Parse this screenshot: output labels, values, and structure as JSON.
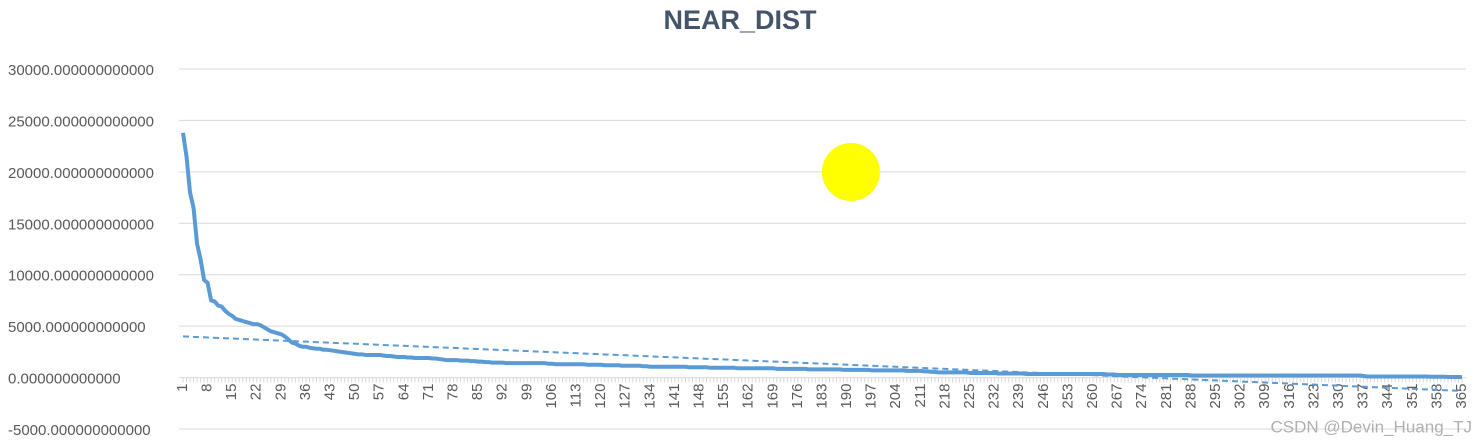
{
  "chart_data": {
    "type": "line",
    "title": "NEAR_DIST",
    "categories": [
      1,
      null,
      null,
      null,
      null,
      null,
      null,
      8,
      null,
      null,
      null,
      null,
      null,
      null,
      15,
      null,
      null,
      null,
      null,
      null,
      null,
      22,
      null,
      null,
      null,
      null,
      null,
      null,
      29,
      null,
      null,
      null,
      null,
      null,
      null,
      36,
      null,
      null,
      null,
      null,
      null,
      null,
      43,
      null,
      null,
      null,
      null,
      null,
      null,
      50,
      null,
      null,
      null,
      null,
      null,
      null,
      57,
      null,
      null,
      null,
      null,
      null,
      null,
      64,
      null,
      null,
      null,
      null,
      null,
      null,
      71,
      null,
      null,
      null,
      null,
      null,
      null,
      78,
      null,
      null,
      null,
      null,
      null,
      null,
      85,
      null,
      null,
      null,
      null,
      null,
      null,
      92,
      null,
      null,
      null,
      null,
      null,
      null,
      99,
      null,
      null,
      null,
      null,
      null,
      null,
      106,
      null,
      null,
      null,
      null,
      null,
      null,
      113,
      null,
      null,
      null,
      null,
      null,
      null,
      120,
      null,
      null,
      null,
      null,
      null,
      null,
      127,
      null,
      null,
      null,
      null,
      null,
      null,
      134,
      null,
      null,
      null,
      null,
      null,
      null,
      141,
      null,
      null,
      null,
      null,
      null,
      null,
      148,
      null,
      null,
      null,
      null,
      null,
      null,
      155,
      null,
      null,
      null,
      null,
      null,
      null,
      162,
      null,
      null,
      null,
      null,
      null,
      null,
      169,
      null,
      null,
      null,
      null,
      null,
      null,
      176,
      null,
      null,
      null,
      null,
      null,
      null,
      183,
      null,
      null,
      null,
      null,
      null,
      null,
      190,
      null,
      null,
      null,
      null,
      null,
      null,
      197,
      null,
      null,
      null,
      null,
      null,
      null,
      204,
      null,
      null,
      null,
      null,
      null,
      null,
      211,
      null,
      null,
      null,
      null,
      null,
      null,
      218,
      null,
      null,
      null,
      null,
      null,
      null,
      225,
      null,
      null,
      null,
      null,
      null,
      null,
      232,
      null,
      null,
      null,
      null,
      null,
      null,
      239,
      null,
      null,
      null,
      null,
      null,
      null,
      246,
      null,
      null,
      null,
      null,
      null,
      null,
      253,
      null,
      null,
      null,
      null,
      null,
      null,
      260,
      null,
      null,
      null,
      null,
      null,
      null,
      267,
      null,
      null,
      null,
      null,
      null,
      null,
      274,
      null,
      null,
      null,
      null,
      null,
      null,
      281,
      null,
      null,
      null,
      null,
      null,
      null,
      288,
      null,
      null,
      null,
      null,
      null,
      null,
      295,
      null,
      null,
      null,
      null,
      null,
      null,
      302,
      null,
      null,
      null,
      null,
      null,
      null,
      309,
      null,
      null,
      null,
      null,
      null,
      null,
      316,
      null,
      null,
      null,
      null,
      null,
      null,
      323,
      null,
      null,
      null,
      null,
      null,
      null,
      330,
      null,
      null,
      null,
      null,
      null,
      null,
      337,
      null,
      null,
      null,
      null,
      null,
      null,
      344,
      null,
      null,
      null,
      null,
      null,
      null,
      351,
      null,
      null,
      null,
      null,
      null,
      null,
      358,
      null,
      null,
      null,
      null,
      null,
      null,
      365
    ],
    "series": [
      {
        "color": "#5b9bd5",
        "values": [
          23800,
          21500,
          18000,
          16500,
          13000,
          11500,
          9500,
          9200,
          7500,
          7400,
          7000,
          6900,
          6500,
          6200,
          6000,
          5700,
          5600,
          5500,
          5400,
          5300,
          5200,
          5200,
          5100,
          4900,
          4700,
          4500,
          4400,
          4300,
          4200,
          4000,
          3700,
          3400,
          3300,
          3100,
          3000,
          3000,
          2900,
          2850,
          2800,
          2800,
          2700,
          2700,
          2650,
          2600,
          2550,
          2500,
          2450,
          2400,
          2350,
          2300,
          2250,
          2250,
          2200,
          2200,
          2200,
          2200,
          2200,
          2150,
          2100,
          2100,
          2050,
          2000,
          2000,
          2000,
          1950,
          1950,
          1900,
          1900,
          1900,
          1900,
          1900,
          1850,
          1850,
          1800,
          1750,
          1700,
          1700,
          1700,
          1700,
          1650,
          1650,
          1650,
          1600,
          1600,
          1550,
          1550,
          1500,
          1500,
          1450,
          1450,
          1450,
          1450,
          1400,
          1400,
          1400,
          1400,
          1400,
          1400,
          1400,
          1400,
          1400,
          1400,
          1400,
          1400,
          1350,
          1350,
          1300,
          1300,
          1300,
          1300,
          1300,
          1300,
          1300,
          1300,
          1300,
          1250,
          1250,
          1250,
          1250,
          1250,
          1200,
          1200,
          1200,
          1200,
          1200,
          1150,
          1150,
          1150,
          1150,
          1150,
          1150,
          1100,
          1100,
          1050,
          1050,
          1050,
          1050,
          1050,
          1050,
          1050,
          1050,
          1050,
          1050,
          1050,
          1000,
          1000,
          1000,
          1000,
          1000,
          1000,
          950,
          950,
          950,
          950,
          950,
          950,
          950,
          950,
          900,
          900,
          900,
          900,
          900,
          900,
          900,
          900,
          900,
          900,
          900,
          850,
          850,
          850,
          850,
          850,
          850,
          850,
          850,
          850,
          800,
          800,
          800,
          800,
          800,
          800,
          800,
          800,
          800,
          800,
          750,
          750,
          750,
          750,
          750,
          750,
          750,
          750,
          700,
          700,
          700,
          700,
          700,
          700,
          700,
          700,
          700,
          700,
          650,
          650,
          650,
          650,
          650,
          600,
          600,
          550,
          550,
          500,
          500,
          500,
          500,
          500,
          500,
          500,
          500,
          500,
          450,
          450,
          450,
          450,
          450,
          450,
          450,
          450,
          400,
          400,
          400,
          400,
          400,
          400,
          400,
          400,
          350,
          350,
          350,
          350,
          350,
          350,
          350,
          350,
          350,
          350,
          350,
          350,
          350,
          350,
          350,
          350,
          350,
          350,
          350,
          350,
          350,
          350,
          350,
          300,
          300,
          300,
          250,
          250,
          250,
          250,
          250,
          250,
          250,
          250,
          250,
          250,
          250,
          250,
          250,
          250,
          250,
          250,
          250,
          250,
          250,
          250,
          250,
          200,
          200,
          200,
          200,
          200,
          200,
          200,
          200,
          200,
          200,
          200,
          200,
          200,
          200,
          200,
          200,
          200,
          200,
          200,
          200,
          200,
          200,
          200,
          200,
          200,
          200,
          200,
          200,
          200,
          200,
          200,
          200,
          200,
          200,
          200,
          200,
          200,
          200,
          200,
          200,
          200,
          200,
          200,
          200,
          200,
          200,
          200,
          200,
          200,
          150,
          100,
          100,
          100,
          100,
          100,
          100,
          100,
          100,
          100,
          100,
          100,
          100,
          100,
          100,
          100,
          100,
          100,
          100,
          80,
          80,
          80,
          80,
          80,
          60,
          60,
          50,
          50,
          40
        ]
      }
    ],
    "trendline": {
      "start": 4000,
      "end": -1300,
      "color": "#5b9bd5"
    },
    "ylim": [
      -5000,
      30000
    ],
    "yticks": [
      {
        "value": -5000,
        "label": "-5000.000000000000"
      },
      {
        "value": 0,
        "label": "0.000000000000"
      },
      {
        "value": 5000,
        "label": "5000.000000000000"
      },
      {
        "value": 10000,
        "label": "10000.000000000000"
      },
      {
        "value": 15000,
        "label": "15000.000000000000"
      },
      {
        "value": 20000,
        "label": "20000.000000000000"
      },
      {
        "value": 25000,
        "label": "25000.000000000000"
      },
      {
        "value": 30000,
        "label": "30000.000000000000"
      }
    ],
    "grid": true,
    "watermark": "CSDN @Devin_Huang_TJ"
  }
}
